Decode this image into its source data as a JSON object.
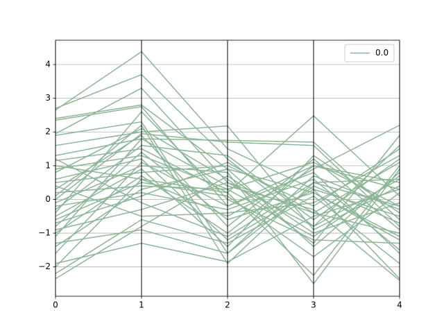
{
  "chart_data": {
    "type": "parallel",
    "x": [
      0,
      1,
      2,
      3,
      4
    ],
    "xlim": [
      0,
      4
    ],
    "xticks": [
      0,
      1,
      2,
      3,
      4
    ],
    "ylim": [
      -2.87,
      4.72
    ],
    "yticks": [
      {
        "value": -2,
        "label": "−2"
      },
      {
        "value": -1,
        "label": "−1"
      },
      0,
      1,
      2,
      3,
      4
    ],
    "grid": true,
    "legend": "upper right",
    "series": [
      {
        "name": "0.0",
        "color": "#8db596",
        "values": [
          [
            2.65,
            4.38,
            1.5,
            0.3,
            -0.5
          ],
          [
            2.7,
            3.7,
            1.2,
            -0.8,
            0.6
          ],
          [
            2.4,
            2.8,
            0.9,
            0.2,
            -1.2
          ],
          [
            2.35,
            2.75,
            -0.2,
            1.0,
            0.3
          ],
          [
            1.95,
            3.3,
            0.5,
            -0.4,
            1.1
          ],
          [
            1.9,
            2.3,
            -1.6,
            0.7,
            -0.3
          ],
          [
            1.6,
            2.0,
            2.18,
            -0.9,
            0.4
          ],
          [
            1.3,
            1.8,
            1.75,
            1.7,
            -0.6
          ],
          [
            1.15,
            1.5,
            0.2,
            2.48,
            0.1
          ],
          [
            1.0,
            0.6,
            -0.5,
            0.9,
            2.2
          ],
          [
            0.8,
            2.1,
            0.6,
            -1.3,
            1.9
          ],
          [
            0.6,
            1.2,
            -1.2,
            0.3,
            -2.35
          ],
          [
            0.5,
            0.8,
            1.0,
            -0.2,
            1.5
          ],
          [
            0.3,
            1.9,
            -0.8,
            1.2,
            -0.9
          ],
          [
            0.2,
            0.4,
            0.3,
            -1.1,
            0.7
          ],
          [
            0.1,
            2.2,
            -1.9,
            0.5,
            -0.2
          ],
          [
            -0.1,
            1.0,
            0.8,
            -2.5,
            0.9
          ],
          [
            -0.2,
            0.2,
            -0.3,
            0.6,
            -1.5
          ],
          [
            -0.3,
            1.6,
            1.3,
            -0.6,
            1.2
          ],
          [
            -0.5,
            0.9,
            -1.4,
            1.3,
            -0.4
          ],
          [
            -0.6,
            0.5,
            0.1,
            -1.7,
            0.2
          ],
          [
            -0.8,
            1.4,
            -0.6,
            0.2,
            -1.1
          ],
          [
            -0.9,
            -0.3,
            0.5,
            -0.8,
            1.6
          ],
          [
            -1.0,
            0.7,
            -1.0,
            1.0,
            0.5
          ],
          [
            -1.1,
            1.8,
            0.4,
            -0.3,
            -2.4
          ],
          [
            -1.3,
            -0.9,
            -1.6,
            0.4,
            -0.7
          ],
          [
            -1.4,
            0.3,
            0.9,
            -1.4,
            0.8
          ],
          [
            -1.6,
            1.1,
            -0.2,
            0.8,
            -1.6
          ],
          [
            -1.9,
            -1.3,
            -1.85,
            -0.5,
            0.3
          ],
          [
            -2.0,
            0.6,
            0.2,
            -2.25,
            1.0
          ],
          [
            -2.2,
            -0.6,
            -1.3,
            0.1,
            -1.9
          ],
          [
            -2.35,
            -0.8,
            0.7,
            -1.0,
            -0.1
          ],
          [
            0.0,
            1.95,
            1.7,
            1.6,
            -0.8
          ],
          [
            0.4,
            -0.5,
            -0.4,
            -0.1,
            1.3
          ],
          [
            -0.4,
            2.6,
            0.0,
            -1.2,
            -1.3
          ],
          [
            1.2,
            -0.1,
            -1.1,
            0.5,
            0.6
          ],
          [
            0.9,
            1.3,
            0.3,
            1.1,
            -0.2
          ],
          [
            -0.7,
            0.1,
            1.1,
            -0.4,
            -1.0
          ]
        ]
      }
    ]
  }
}
